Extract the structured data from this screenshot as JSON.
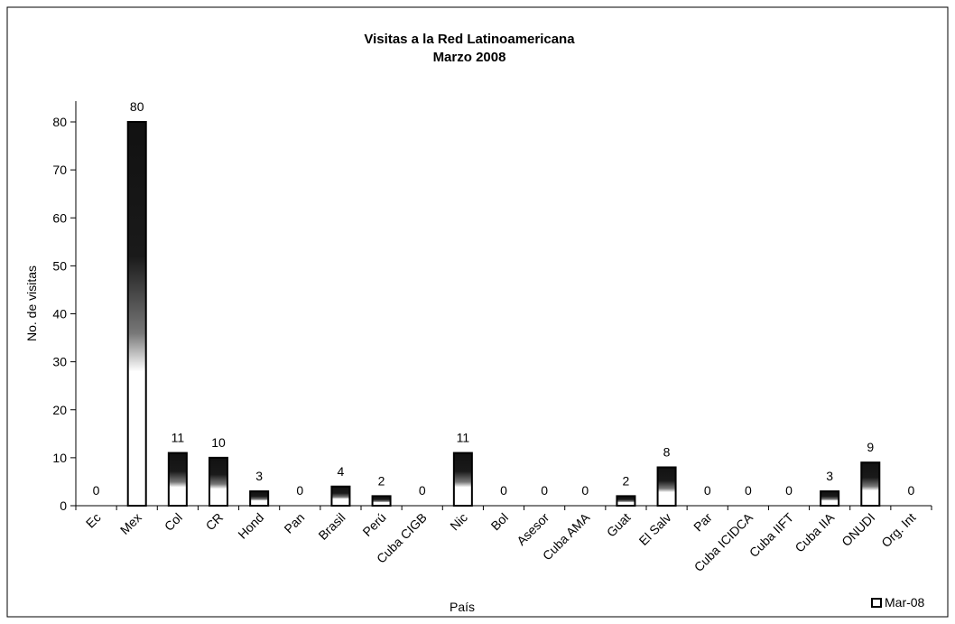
{
  "chart_data": {
    "type": "bar",
    "title": "Visitas a la Red Latinoamericana",
    "subtitle": "Marzo 2008",
    "xlabel": "País",
    "ylabel": "No. de visitas",
    "ylim": [
      0,
      85
    ],
    "yticks": [
      0,
      10,
      20,
      30,
      40,
      50,
      60,
      70,
      80
    ],
    "grid": false,
    "legend_position": "bottom-right",
    "categories": [
      "Ec",
      "Mex",
      "Col",
      "CR",
      "Hond",
      "Pan",
      "Brasil",
      "Perú",
      "Cuba CIGB",
      "Nic",
      "Bol",
      "Asesor",
      "Cuba AMA",
      "Guat",
      "El Salv",
      "Par",
      "Cuba ICIDCA",
      "Cuba IIFT",
      "Cuba IIA",
      "ONUDI",
      "Org. Int"
    ],
    "series": [
      {
        "name": "Mar-08",
        "values": [
          0,
          80,
          11,
          10,
          3,
          0,
          4,
          2,
          0,
          11,
          0,
          0,
          0,
          2,
          8,
          0,
          0,
          0,
          3,
          9,
          0
        ]
      }
    ],
    "colors": {
      "bar_top": "#111111",
      "bar_bottom": "#ffffff",
      "axis": "#000000",
      "frame": "#000000"
    }
  }
}
